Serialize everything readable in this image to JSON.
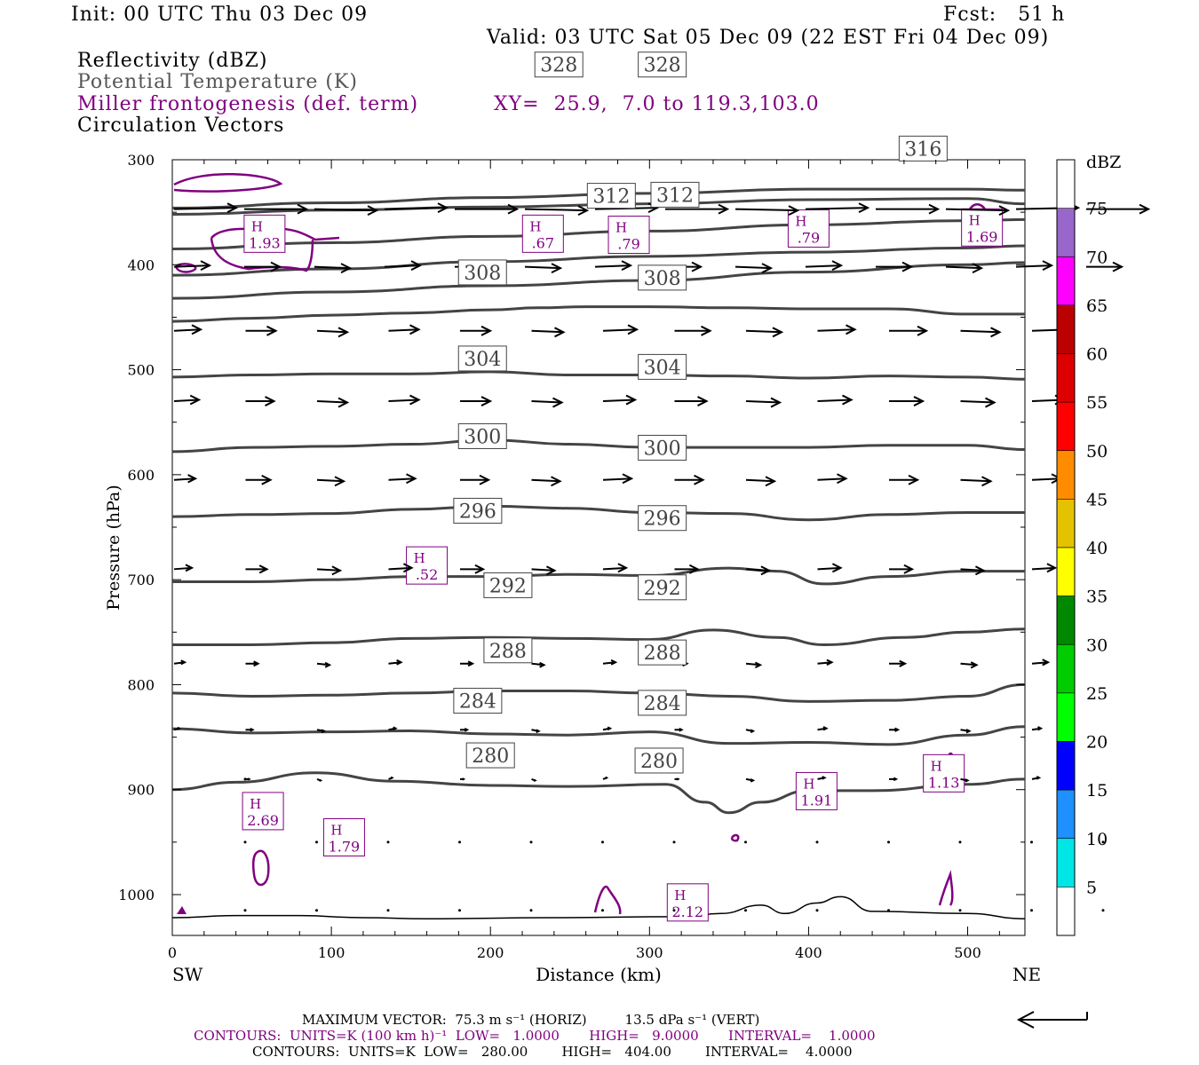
{
  "header": {
    "init": "Init: 00 UTC Thu 03 Dec 09",
    "fcst": "Fcst:   51 h",
    "valid": "Valid: 03 UTC Sat 05 Dec 09 (22 EST Fri 04 Dec 09)"
  },
  "fields": {
    "reflectivity": "Reflectivity (dBZ)",
    "theta": "Potential Temperature (K)",
    "miller": "Miller frontogenesis (def. term)",
    "xy": "XY=  25.9,  7.0 to 119.3,103.0",
    "circulation": "Circulation Vectors"
  },
  "colors": {
    "theta_contour": "#444444",
    "miller_contour": "#800080",
    "vector": "#000000",
    "terrain": "#000000"
  },
  "chart_data": {
    "type": "contour",
    "xlabel": "Distance (km)",
    "ylabel": "Pressure (hPa)",
    "xlim": [
      0,
      536
    ],
    "ylim": [
      1040,
      300
    ],
    "y_scale": "pressure",
    "x_ticks": [
      "0",
      "100",
      "200",
      "300",
      "400",
      "500"
    ],
    "y_ticks": [
      "300",
      "400",
      "500",
      "600",
      "700",
      "800",
      "900",
      "1000"
    ],
    "sw_label": "SW",
    "ne_label": "NE",
    "theta_contours": [
      {
        "value": 280,
        "label": "280",
        "x": [
          0,
          40,
          90,
          140,
          200,
          250,
          310,
          335,
          350,
          370,
          400,
          440,
          500,
          536
        ],
        "p": [
          900,
          893,
          884,
          892,
          896,
          897,
          895,
          912,
          922,
          912,
          901,
          901,
          895,
          890
        ],
        "labels_at": [
          [
            200,
            880
          ],
          [
            306,
            885
          ]
        ]
      },
      {
        "value": 284,
        "label": "284",
        "x": [
          0,
          50,
          100,
          150,
          200,
          250,
          300,
          350,
          400,
          450,
          500,
          536
        ],
        "p": [
          842,
          846,
          845,
          844,
          847,
          848,
          845,
          856,
          855,
          857,
          848,
          840
        ],
        "labels_at": [
          [
            192,
            828
          ],
          [
            308,
            830
          ]
        ]
      },
      {
        "value": 288,
        "label": "288",
        "x": [
          0,
          50,
          100,
          150,
          200,
          250,
          300,
          350,
          400,
          450,
          500,
          536
        ],
        "p": [
          808,
          811,
          810,
          808,
          806,
          806,
          808,
          811,
          816,
          815,
          811,
          800
        ],
        "labels_at": [
          [
            211,
            780
          ],
          [
            308,
            782
          ]
        ]
      },
      {
        "value": 292,
        "label": "292",
        "x": [
          0,
          50,
          100,
          150,
          200,
          250,
          300,
          340,
          380,
          410,
          460,
          500,
          536
        ],
        "p": [
          762,
          762,
          760,
          756,
          755,
          756,
          757,
          748,
          755,
          762,
          755,
          750,
          747
        ],
        "labels_at": [
          [
            211,
            718
          ],
          [
            308,
            720
          ]
        ]
      },
      {
        "value": 296,
        "label": "296",
        "x": [
          0,
          50,
          100,
          150,
          200,
          250,
          300,
          350,
          380,
          410,
          450,
          500,
          536
        ],
        "p": [
          702,
          702,
          700,
          697,
          697,
          695,
          696,
          689,
          692,
          704,
          697,
          692,
          692
        ],
        "labels_at": [
          [
            192,
            647
          ],
          [
            308,
            654
          ]
        ]
      },
      {
        "value": 300,
        "label": "300",
        "x": [
          0,
          50,
          100,
          150,
          200,
          250,
          300,
          350,
          400,
          450,
          500,
          536
        ],
        "p": [
          640,
          638,
          637,
          633,
          630,
          632,
          636,
          637,
          643,
          638,
          636,
          636
        ],
        "labels_at": [
          [
            195,
            576
          ],
          [
            308,
            587
          ]
        ]
      },
      {
        "value": 304,
        "label": "304",
        "x": [
          0,
          50,
          100,
          150,
          200,
          250,
          300,
          350,
          400,
          450,
          500,
          536
        ],
        "p": [
          578,
          574,
          573,
          571,
          567,
          571,
          574,
          574,
          574,
          572,
          572,
          576
        ],
        "labels_at": [
          [
            195,
            502
          ],
          [
            308,
            510
          ]
        ]
      },
      {
        "value": 308,
        "label": "308",
        "x": [
          0,
          50,
          100,
          150,
          200,
          250,
          300,
          350,
          400,
          450,
          500,
          536
        ],
        "p": [
          507,
          505,
          504,
          504,
          502,
          505,
          505,
          506,
          508,
          506,
          507,
          509
        ],
        "labels_at": [
          [
            195,
            420
          ],
          [
            308,
            425
          ]
        ]
      },
      {
        "value": 312,
        "label": "312",
        "x": [
          0,
          50,
          100,
          150,
          200,
          230,
          260,
          300,
          350,
          400,
          450,
          500,
          536
        ],
        "p": [
          454,
          451,
          448,
          446,
          443,
          441,
          440,
          440,
          441,
          442,
          442,
          447,
          447
        ],
        "labels_at": [
          [
            276,
            347
          ],
          [
            316,
            346
          ]
        ]
      },
      {
        "value": 316,
        "label": "316",
        "x": [
          0,
          100,
          200,
          300,
          400,
          500,
          536
        ],
        "p": [
          432,
          426,
          420,
          415,
          407,
          400,
          398
        ],
        "labels_at": [
          [
            472,
            302
          ]
        ]
      },
      {
        "value": 320,
        "label": "",
        "x": [
          0,
          100,
          200,
          300,
          400,
          500,
          536
        ],
        "p": [
          410,
          404,
          397,
          392,
          388,
          384,
          382
        ],
        "labels_at": []
      },
      {
        "value": 324,
        "label": "",
        "x": [
          0,
          100,
          200,
          300,
          400,
          500,
          536
        ],
        "p": [
          385,
          379,
          373,
          368,
          362,
          358,
          357
        ],
        "labels_at": []
      },
      {
        "value": "",
        "label": "",
        "x": [
          0,
          100,
          200,
          300,
          400,
          500,
          536
        ],
        "p": [
          352,
          348,
          345,
          342,
          338,
          337,
          342
        ],
        "labels_at": []
      },
      {
        "value": 328,
        "label": "328",
        "x": [
          0,
          100,
          200,
          300,
          400,
          500,
          536
        ],
        "p": [
          346,
          341,
          336,
          332,
          328,
          328,
          329
        ],
        "labels_at": [
          [
            243,
            222
          ],
          [
            308,
            222
          ]
        ]
      }
    ],
    "miller_highs": [
      {
        "value": "1.93",
        "x": 58,
        "p": 373
      },
      {
        "value": ".67",
        "x": 233,
        "p": 373
      },
      {
        "value": ".79",
        "x": 287,
        "p": 374
      },
      {
        "value": ".79",
        "x": 400,
        "p": 368
      },
      {
        "value": "1.69",
        "x": 509,
        "p": 367
      },
      {
        "value": ".52",
        "x": 160,
        "p": 689
      },
      {
        "value": "2.69",
        "x": 57,
        "p": 923
      },
      {
        "value": "1.79",
        "x": 108,
        "p": 948
      },
      {
        "value": "2.12",
        "x": 324,
        "p": 1010
      },
      {
        "value": "1.91",
        "x": 405,
        "p": 904
      },
      {
        "value": "1.13",
        "x": 485,
        "p": 887
      }
    ],
    "vector_rows": [
      {
        "p": 347,
        "dx": [
          70,
          70,
          70,
          70,
          70,
          70,
          70,
          70,
          70,
          70,
          70,
          70,
          70,
          70
        ]
      },
      {
        "p": 402,
        "dx": [
          40,
          40,
          40,
          40,
          40,
          40,
          40,
          40,
          40,
          40,
          40,
          40,
          40,
          40
        ]
      },
      {
        "p": 463,
        "dx": [
          30,
          34,
          34,
          34,
          34,
          36,
          38,
          40,
          40,
          42,
          42,
          44,
          42
        ]
      },
      {
        "p": 530,
        "dx": [
          28,
          32,
          34,
          34,
          34,
          34,
          36,
          36,
          38,
          38,
          38,
          38,
          36
        ]
      },
      {
        "p": 605,
        "dx": [
          24,
          28,
          30,
          30,
          32,
          32,
          32,
          32,
          32,
          32,
          32,
          34,
          32
        ]
      },
      {
        "p": 690,
        "dx": [
          20,
          24,
          26,
          26,
          26,
          26,
          26,
          26,
          26,
          26,
          26,
          26,
          26
        ]
      },
      {
        "p": 780,
        "dx": [
          12,
          14,
          14,
          14,
          14,
          14,
          14,
          14,
          16,
          16,
          18,
          18,
          18
        ]
      },
      {
        "p": 843,
        "dx": [
          6,
          8,
          8,
          8,
          8,
          8,
          8,
          8,
          8,
          10,
          10,
          10,
          10
        ]
      },
      {
        "p": 890,
        "dx": [
          3,
          4,
          4,
          4,
          4,
          4,
          4,
          4,
          8,
          8,
          8,
          8,
          8
        ]
      },
      {
        "p": 950,
        "dx": [
          2,
          2,
          2,
          2,
          2,
          2,
          2,
          2,
          2,
          2,
          2,
          2,
          2
        ]
      },
      {
        "p": 1015,
        "dx": [
          2,
          2,
          2,
          2,
          2,
          2,
          2,
          2,
          2,
          2,
          2,
          2,
          2
        ]
      }
    ],
    "terrain_p": [
      1022,
      1020,
      1020,
      1022,
      1023,
      1022,
      1021,
      1018,
      1010,
      1018,
      1008,
      1002,
      1016,
      1018,
      1023
    ],
    "terrain_x": [
      0,
      40,
      80,
      120,
      160,
      240,
      320,
      345,
      370,
      385,
      405,
      420,
      440,
      500,
      536
    ],
    "colorbar": {
      "label": "dBZ",
      "ticks": [
        "5",
        "10",
        "15",
        "20",
        "25",
        "30",
        "35",
        "40",
        "45",
        "50",
        "55",
        "60",
        "65",
        "70",
        "75"
      ],
      "colors": [
        "#00e5e5",
        "#1e90ff",
        "#0000ff",
        "#00ff00",
        "#00cc00",
        "#008800",
        "#ffff00",
        "#e5c200",
        "#ff8c00",
        "#ff0000",
        "#dd0000",
        "#bb0000",
        "#ff00ff",
        "#9966cc",
        "#ffffff"
      ]
    }
  },
  "footer": {
    "max_vector": "MAXIMUM VECTOR:  75.3 m s⁻¹ (HORIZ)         13.5 dPa s⁻¹ (VERT)",
    "contours_miller": "CONTOURS:  UNITS=K (100 km h)⁻¹  LOW=   1.0000       HIGH=   9.0000       INTERVAL=    1.0000",
    "contours_theta": "CONTOURS:  UNITS=K  LOW=   280.00        HIGH=   404.00        INTERVAL=    4.0000"
  }
}
